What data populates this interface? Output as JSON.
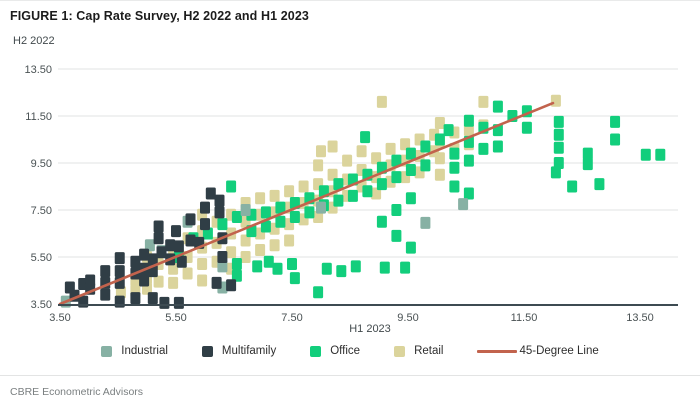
{
  "header": {
    "title": "FIGURE 1: Cap Rate Survey, H2 2022 and H1 2023"
  },
  "footer": {
    "source": "CBRE Econometric Advisors"
  },
  "legend": {
    "items": [
      {
        "label": "Industrial",
        "color": "#87b1a4"
      },
      {
        "label": "Multifamily",
        "color": "#303e46"
      },
      {
        "label": "Office",
        "color": "#12ce7c"
      },
      {
        "label": "Retail",
        "color": "#dbd49c"
      }
    ],
    "line_label": "45-Degree Line",
    "line_color": "#c2634d"
  },
  "chart_data": {
    "type": "scatter",
    "title": "FIGURE 1: Cap Rate Survey, H2 2022 and H1 2023",
    "xlabel": "H1 2023",
    "ylabel": "H2 2022",
    "xlim": [
      3.3,
      14.6
    ],
    "ylim": [
      3.3,
      13.9
    ],
    "x_ticks": [
      3.5,
      5.5,
      7.5,
      9.5,
      11.5,
      13.5
    ],
    "y_ticks": [
      3.5,
      5.5,
      7.5,
      9.5,
      11.5,
      13.5
    ],
    "tick_format": "2dp",
    "grid": "horizontal",
    "legend_position": "bottom",
    "marker": "square",
    "series": [
      {
        "name": "Retail",
        "color": "#dbd49c",
        "points": [
          [
            4.55,
            4.0
          ],
          [
            4.8,
            4.5
          ],
          [
            4.8,
            4.05
          ],
          [
            5.0,
            5.5
          ],
          [
            5.0,
            4.6
          ],
          [
            5.0,
            4.15
          ],
          [
            5.2,
            5.2
          ],
          [
            5.2,
            4.45
          ],
          [
            5.45,
            5.85
          ],
          [
            5.45,
            5.0
          ],
          [
            5.45,
            4.4
          ],
          [
            5.7,
            6.3
          ],
          [
            5.7,
            5.5
          ],
          [
            5.7,
            4.8
          ],
          [
            5.95,
            7.3
          ],
          [
            5.95,
            6.6
          ],
          [
            5.95,
            5.9
          ],
          [
            5.95,
            5.2
          ],
          [
            5.95,
            4.5
          ],
          [
            6.2,
            7.0
          ],
          [
            6.2,
            6.1
          ],
          [
            6.2,
            5.3
          ],
          [
            6.45,
            7.3
          ],
          [
            6.45,
            6.5
          ],
          [
            6.45,
            5.7
          ],
          [
            6.45,
            5.0
          ],
          [
            6.7,
            7.8
          ],
          [
            6.7,
            7.0
          ],
          [
            6.7,
            6.2
          ],
          [
            6.7,
            5.5
          ],
          [
            6.95,
            8.0
          ],
          [
            6.95,
            7.3
          ],
          [
            6.95,
            6.5
          ],
          [
            6.95,
            5.8
          ],
          [
            7.2,
            8.1
          ],
          [
            7.2,
            7.4
          ],
          [
            7.2,
            6.7
          ],
          [
            7.2,
            6.0
          ],
          [
            7.45,
            8.3
          ],
          [
            7.45,
            7.6
          ],
          [
            7.45,
            6.9
          ],
          [
            7.45,
            6.2
          ],
          [
            7.7,
            8.5
          ],
          [
            7.7,
            7.8
          ],
          [
            7.7,
            7.1
          ],
          [
            7.95,
            9.4
          ],
          [
            7.95,
            8.6
          ],
          [
            7.95,
            7.9
          ],
          [
            7.95,
            7.2
          ],
          [
            8.0,
            10.0
          ],
          [
            8.2,
            10.2
          ],
          [
            8.2,
            9.0
          ],
          [
            8.2,
            8.3
          ],
          [
            8.2,
            7.6
          ],
          [
            8.45,
            9.6
          ],
          [
            8.45,
            8.8
          ],
          [
            8.45,
            8.1
          ],
          [
            8.7,
            10.0
          ],
          [
            8.7,
            9.2
          ],
          [
            8.7,
            8.5
          ],
          [
            8.95,
            9.7
          ],
          [
            8.95,
            8.9
          ],
          [
            8.95,
            8.2
          ],
          [
            9.05,
            12.1
          ],
          [
            9.2,
            10.1
          ],
          [
            9.2,
            9.4
          ],
          [
            9.2,
            8.7
          ],
          [
            9.45,
            10.3
          ],
          [
            9.45,
            9.6
          ],
          [
            9.45,
            8.9
          ],
          [
            9.7,
            10.5
          ],
          [
            9.7,
            9.8
          ],
          [
            9.7,
            9.1
          ],
          [
            9.95,
            10.7
          ],
          [
            9.95,
            10.0
          ],
          [
            10.05,
            11.2
          ],
          [
            10.05,
            10.4
          ],
          [
            10.05,
            9.7
          ],
          [
            10.05,
            9.0
          ],
          [
            10.3,
            10.8
          ],
          [
            10.3,
            10.1
          ],
          [
            10.55,
            10.9
          ],
          [
            10.55,
            10.3
          ],
          [
            10.8,
            12.1
          ],
          [
            10.8,
            11.1
          ],
          [
            12.05,
            12.15
          ]
        ]
      },
      {
        "name": "Office",
        "color": "#12ce7c",
        "points": [
          [
            5.55,
            5.5
          ],
          [
            5.8,
            6.3
          ],
          [
            6.05,
            6.5
          ],
          [
            6.3,
            6.9
          ],
          [
            6.45,
            8.5
          ],
          [
            6.55,
            7.2
          ],
          [
            6.55,
            5.2
          ],
          [
            6.55,
            4.7
          ],
          [
            6.8,
            7.3
          ],
          [
            6.8,
            6.6
          ],
          [
            6.9,
            5.1
          ],
          [
            7.05,
            7.4
          ],
          [
            7.05,
            6.8
          ],
          [
            7.1,
            5.3
          ],
          [
            7.25,
            5.0
          ],
          [
            7.3,
            7.6
          ],
          [
            7.3,
            7.0
          ],
          [
            7.5,
            5.2
          ],
          [
            7.55,
            7.8
          ],
          [
            7.55,
            7.2
          ],
          [
            7.55,
            4.6
          ],
          [
            7.8,
            8.0
          ],
          [
            7.8,
            7.4
          ],
          [
            7.95,
            4.0
          ],
          [
            8.05,
            8.3
          ],
          [
            8.05,
            7.7
          ],
          [
            8.1,
            5.0
          ],
          [
            8.3,
            8.6
          ],
          [
            8.3,
            7.9
          ],
          [
            8.35,
            4.9
          ],
          [
            8.55,
            8.8
          ],
          [
            8.55,
            8.1
          ],
          [
            8.6,
            5.1
          ],
          [
            8.76,
            10.6
          ],
          [
            8.8,
            9.0
          ],
          [
            8.8,
            8.3
          ],
          [
            9.05,
            9.3
          ],
          [
            9.05,
            8.6
          ],
          [
            9.05,
            7.0
          ],
          [
            9.1,
            5.05
          ],
          [
            9.3,
            9.6
          ],
          [
            9.3,
            8.9
          ],
          [
            9.3,
            7.5
          ],
          [
            9.3,
            6.4
          ],
          [
            9.45,
            5.05
          ],
          [
            9.55,
            9.9
          ],
          [
            9.55,
            9.2
          ],
          [
            9.55,
            8.0
          ],
          [
            9.55,
            5.9
          ],
          [
            9.8,
            10.2
          ],
          [
            9.8,
            9.4
          ],
          [
            10.05,
            10.5
          ],
          [
            10.2,
            10.9
          ],
          [
            10.3,
            9.9
          ],
          [
            10.3,
            9.3
          ],
          [
            10.3,
            8.5
          ],
          [
            10.55,
            11.3
          ],
          [
            10.55,
            10.4
          ],
          [
            10.55,
            9.6
          ],
          [
            10.55,
            8.2
          ],
          [
            10.8,
            11.0
          ],
          [
            10.8,
            10.1
          ],
          [
            11.05,
            11.9
          ],
          [
            11.05,
            10.9
          ],
          [
            11.05,
            10.2
          ],
          [
            11.3,
            11.5
          ],
          [
            11.55,
            11.7
          ],
          [
            11.55,
            11.0
          ],
          [
            12.1,
            11.25
          ],
          [
            12.1,
            10.7
          ],
          [
            12.1,
            10.15
          ],
          [
            12.1,
            9.5
          ],
          [
            12.05,
            9.1
          ],
          [
            12.33,
            8.5
          ],
          [
            12.6,
            9.9
          ],
          [
            12.6,
            9.45
          ],
          [
            12.8,
            8.6
          ],
          [
            13.07,
            11.25
          ],
          [
            13.07,
            10.5
          ],
          [
            13.6,
            9.85
          ],
          [
            13.85,
            9.85
          ]
        ]
      },
      {
        "name": "Industrial",
        "color": "#87b1a4",
        "points": [
          [
            3.6,
            3.6
          ],
          [
            5.05,
            6.0
          ],
          [
            5.25,
            5.75
          ],
          [
            5.7,
            7.0
          ],
          [
            6.3,
            5.1
          ],
          [
            6.3,
            4.2
          ],
          [
            6.7,
            7.5
          ],
          [
            8.0,
            7.6
          ],
          [
            9.8,
            6.95
          ],
          [
            10.45,
            7.75
          ]
        ]
      },
      {
        "name": "Multifamily",
        "color": "#303e46",
        "points": [
          [
            3.67,
            4.2
          ],
          [
            3.75,
            3.85
          ],
          [
            3.9,
            4.35
          ],
          [
            3.9,
            3.6
          ],
          [
            4.02,
            4.5
          ],
          [
            4.02,
            4.15
          ],
          [
            4.28,
            4.9
          ],
          [
            4.28,
            4.4
          ],
          [
            4.28,
            3.9
          ],
          [
            4.53,
            5.45
          ],
          [
            4.53,
            4.9
          ],
          [
            4.53,
            4.4
          ],
          [
            4.53,
            3.6
          ],
          [
            4.8,
            5.3
          ],
          [
            4.8,
            4.8
          ],
          [
            4.8,
            3.75
          ],
          [
            4.95,
            5.6
          ],
          [
            4.95,
            5.0
          ],
          [
            4.95,
            4.5
          ],
          [
            5.1,
            5.4
          ],
          [
            5.1,
            4.9
          ],
          [
            5.1,
            3.75
          ],
          [
            5.2,
            6.8
          ],
          [
            5.2,
            6.3
          ],
          [
            5.25,
            5.7
          ],
          [
            5.3,
            3.55
          ],
          [
            5.4,
            6.0
          ],
          [
            5.4,
            5.4
          ],
          [
            5.5,
            6.6
          ],
          [
            5.55,
            5.95
          ],
          [
            5.55,
            3.55
          ],
          [
            5.6,
            5.3
          ],
          [
            5.75,
            7.1
          ],
          [
            5.75,
            6.2
          ],
          [
            5.9,
            6.1
          ],
          [
            6.0,
            7.6
          ],
          [
            6.0,
            6.9
          ],
          [
            6.1,
            8.2
          ],
          [
            6.25,
            7.9
          ],
          [
            6.25,
            7.4
          ],
          [
            6.3,
            6.3
          ],
          [
            6.3,
            5.5
          ],
          [
            6.2,
            4.4
          ],
          [
            6.45,
            4.3
          ]
        ]
      }
    ],
    "line": {
      "name": "45-Degree Line",
      "color": "#c2634d",
      "from": [
        3.5,
        3.5
      ],
      "to": [
        12.0,
        12.05
      ]
    }
  }
}
